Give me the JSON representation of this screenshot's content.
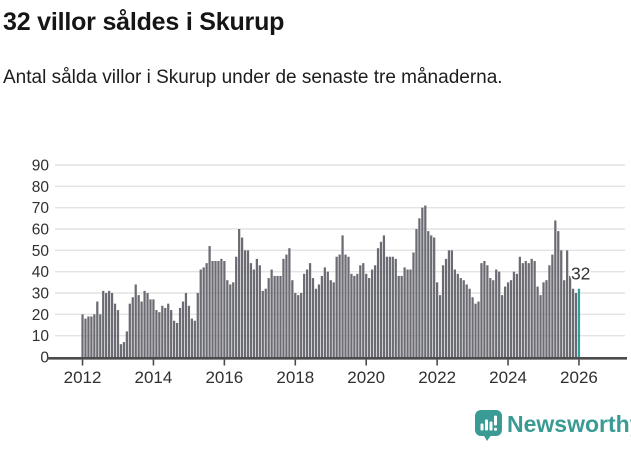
{
  "header": {
    "title": "32 villor såldes i Skurup",
    "subtitle": "Antal sålda villor i Skurup under de senaste tre månaderna."
  },
  "footer": {
    "brand": "Newsworthy",
    "logo_icon": "newsworthy-speech-bubble-bar-chart-icon"
  },
  "colors": {
    "bar": "#6b6b73",
    "highlight": "#2f9e9e",
    "gridline": "#e3e3e3",
    "axis": "#4b4b4b",
    "axis_text": "#303030",
    "annotation_text": "#333333",
    "brand_teal": "#3a9b94",
    "background": "#ffffff"
  },
  "chart_data": {
    "type": "bar",
    "title": "32 villor såldes i Skurup",
    "subtitle": "Antal sålda villor i Skurup under de senaste tre månaderna.",
    "xlabel": "",
    "ylabel": "",
    "frequency": "monthly",
    "x_start": "2012-01",
    "x_end": "2026-01",
    "ylim": [
      0,
      93
    ],
    "grid": "horizontal",
    "y_ticks": [
      0,
      10,
      20,
      30,
      40,
      50,
      60,
      70,
      80,
      90
    ],
    "x_tick_labels": [
      "2012",
      "2014",
      "2016",
      "2018",
      "2020",
      "2022",
      "2024",
      "2026"
    ],
    "x_tick_every_n_bars": 24,
    "values": [
      20,
      18,
      19,
      19,
      20,
      26,
      20,
      31,
      30,
      31,
      30,
      25,
      22,
      6,
      7,
      12,
      25,
      28,
      34,
      29,
      26,
      31,
      30,
      27,
      27,
      22,
      21,
      24,
      23,
      25,
      22,
      17,
      16,
      23,
      26,
      30,
      24,
      18,
      17,
      30,
      41,
      42,
      44,
      52,
      45,
      45,
      45,
      46,
      45,
      36,
      34,
      35,
      47,
      60,
      56,
      50,
      50,
      44,
      41,
      46,
      43,
      31,
      32,
      37,
      41,
      38,
      38,
      38,
      46,
      48,
      51,
      36,
      30,
      29,
      30,
      39,
      41,
      44,
      37,
      32,
      34,
      38,
      42,
      40,
      36,
      35,
      47,
      48,
      57,
      48,
      47,
      39,
      38,
      39,
      43,
      44,
      39,
      37,
      41,
      43,
      51,
      54,
      57,
      47,
      47,
      47,
      46,
      38,
      38,
      42,
      41,
      41,
      49,
      60,
      65,
      70,
      71,
      59,
      57,
      56,
      35,
      29,
      43,
      46,
      50,
      50,
      41,
      39,
      37,
      36,
      34,
      32,
      28,
      25,
      26,
      44,
      45,
      43,
      37,
      36,
      41,
      40,
      29,
      33,
      35,
      36,
      40,
      39,
      47,
      44,
      45,
      44,
      46,
      45,
      33,
      29,
      35,
      36,
      43,
      48,
      64,
      59,
      50,
      36,
      50,
      38,
      32,
      30,
      32
    ],
    "highlight_index": 168,
    "annotation": {
      "text": "32",
      "applies_to": "last-bar"
    },
    "legend": "none"
  }
}
